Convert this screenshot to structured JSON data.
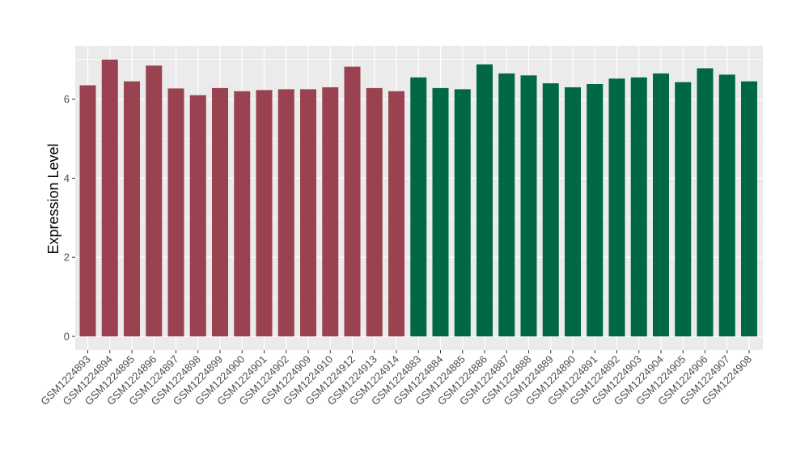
{
  "chart_data": {
    "type": "bar",
    "title": "",
    "xlabel": "",
    "ylabel": "Expression Level",
    "ylim": [
      0,
      7.2
    ],
    "yticks": [
      0,
      2,
      4,
      6
    ],
    "grid": true,
    "legend": "none",
    "colors": {
      "group_a": "#9b4250",
      "group_b": "#006842",
      "panel": "#ebebeb",
      "gridline": "#ffffff"
    },
    "categories": [
      "GSM1224893",
      "GSM1224894",
      "GSM1224895",
      "GSM1224896",
      "GSM1224897",
      "GSM1224898",
      "GSM1224899",
      "GSM1224900",
      "GSM1224901",
      "GSM1224902",
      "GSM1224909",
      "GSM1224910",
      "GSM1224912",
      "GSM1224913",
      "GSM1224914",
      "GSM1224883",
      "GSM1224884",
      "GSM1224885",
      "GSM1224886",
      "GSM1224887",
      "GSM1224888",
      "GSM1224889",
      "GSM1224890",
      "GSM1224891",
      "GSM1224892",
      "GSM1224903",
      "GSM1224904",
      "GSM1224905",
      "GSM1224906",
      "GSM1224907",
      "GSM1224908"
    ],
    "values": [
      6.35,
      7.0,
      6.45,
      6.85,
      6.27,
      6.1,
      6.28,
      6.2,
      6.23,
      6.25,
      6.25,
      6.3,
      6.82,
      6.28,
      6.2,
      6.55,
      6.28,
      6.25,
      6.88,
      6.65,
      6.6,
      6.4,
      6.3,
      6.38,
      6.52,
      6.55,
      6.65,
      6.43,
      6.78,
      6.62,
      6.45
    ],
    "groups": [
      "a",
      "a",
      "a",
      "a",
      "a",
      "a",
      "a",
      "a",
      "a",
      "a",
      "a",
      "a",
      "a",
      "a",
      "a",
      "b",
      "b",
      "b",
      "b",
      "b",
      "b",
      "b",
      "b",
      "b",
      "b",
      "b",
      "b",
      "b",
      "b",
      "b",
      "b"
    ]
  }
}
